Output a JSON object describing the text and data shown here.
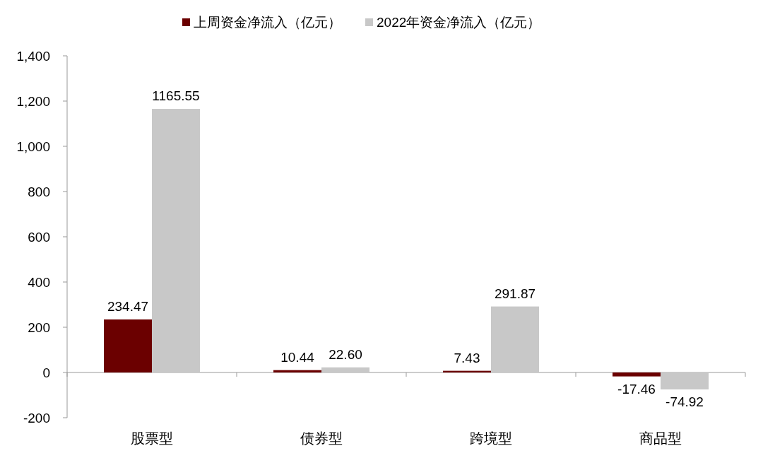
{
  "chart_data": {
    "type": "bar",
    "categories": [
      "股票型",
      "债券型",
      "跨境型",
      "商品型"
    ],
    "series": [
      {
        "name": "上周资金净流入（亿元）",
        "color": "#6b0000",
        "values": [
          234.47,
          10.44,
          7.43,
          -17.46
        ],
        "value_labels": [
          "234.47",
          "10.44",
          "7.43",
          "-17.46"
        ]
      },
      {
        "name": "2022年资金净流入（亿元）",
        "color": "#c8c8c8",
        "values": [
          1165.55,
          22.6,
          291.87,
          -74.92
        ],
        "value_labels": [
          "1165.55",
          "22.60",
          "291.87",
          "-74.92"
        ]
      }
    ],
    "ylim": [
      -200,
      1400
    ],
    "yticks": [
      -200,
      0,
      200,
      400,
      600,
      800,
      {
        "value": 1000,
        "label": "1,000"
      },
      {
        "value": 1200,
        "label": "1,200"
      },
      {
        "value": 1400,
        "label": "1,400"
      }
    ],
    "legend": "top"
  }
}
